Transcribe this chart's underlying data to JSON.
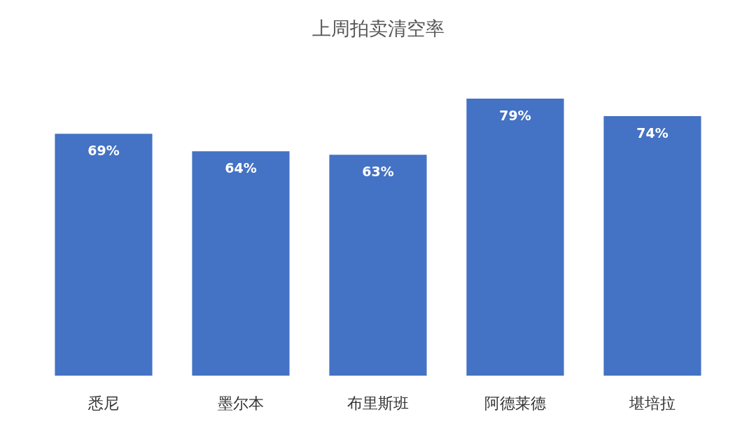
{
  "chart_data": {
    "type": "bar",
    "title": "上周拍卖清空率",
    "categories": [
      "悉尼",
      "墨尔本",
      "布里斯班",
      "阿德莱德",
      "堪培拉"
    ],
    "values": [
      69,
      64,
      63,
      79,
      74
    ],
    "value_labels": [
      "69%",
      "64%",
      "63%",
      "79%",
      "74%"
    ],
    "color": "#4472c4"
  }
}
